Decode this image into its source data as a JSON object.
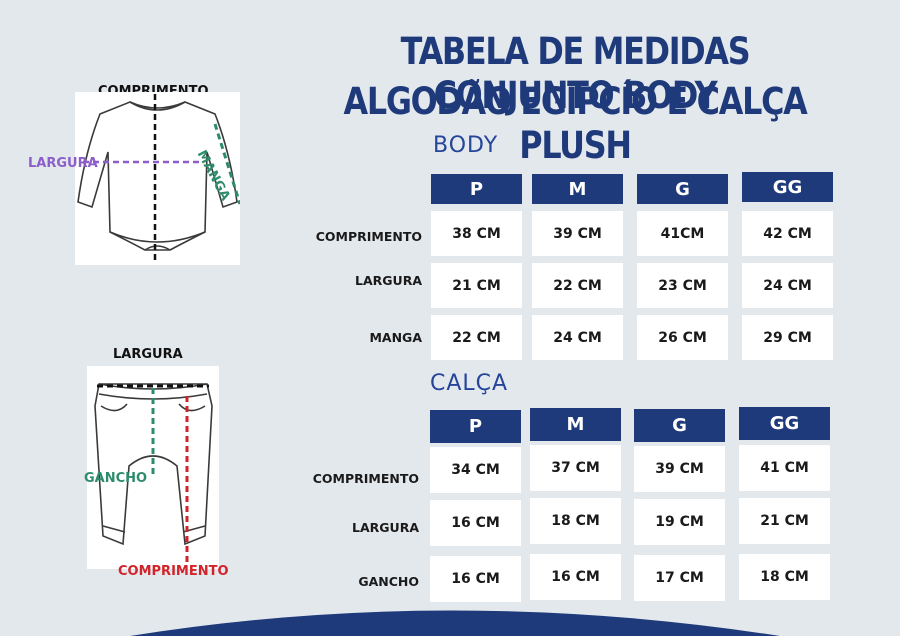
{
  "title": {
    "line1": "TABELA DE MEDIDAS CONJUNTO BODY",
    "line2": "ALGODÃO EGIPCÍO E CALÇA PLUSH"
  },
  "colors": {
    "navy": "#1f3a7a",
    "accent_blue": "#25459a",
    "purple": "#8b5ec9",
    "green": "#2e8b6b",
    "red": "#d2232a",
    "background": "#e3e8ed"
  },
  "body_section": {
    "title": "BODY",
    "sizes": [
      "P",
      "M",
      "G",
      "GG"
    ],
    "rows": [
      {
        "label": "COMPRIMENTO",
        "values": [
          "38 CM",
          "39 CM",
          "41CM",
          "42 CM"
        ]
      },
      {
        "label": "LARGURA",
        "values": [
          "21 CM",
          "22 CM",
          "23 CM",
          "24 CM"
        ]
      },
      {
        "label": "MANGA",
        "values": [
          "22 CM",
          "24 CM",
          "26 CM",
          "29 CM"
        ]
      }
    ]
  },
  "calca_section": {
    "title": "CALÇA",
    "sizes": [
      "P",
      "M",
      "G",
      "GG"
    ],
    "rows": [
      {
        "label": "COMPRIMENTO",
        "values": [
          "34 CM",
          "37 CM",
          "39 CM",
          "41 CM"
        ]
      },
      {
        "label": "LARGURA",
        "values": [
          "16 CM",
          "18 CM",
          "19 CM",
          "21 CM"
        ]
      },
      {
        "label": "GANCHO",
        "values": [
          "16 CM",
          "16 CM",
          "17 CM",
          "18 CM"
        ]
      }
    ]
  },
  "body_illustration": {
    "comprimento": "COMPRIMENTO",
    "largura": "LARGURA",
    "manga": "MANGA"
  },
  "pants_illustration": {
    "largura": "LARGURA",
    "gancho": "GANCHO",
    "comprimento": "COMPRIMENTO"
  }
}
